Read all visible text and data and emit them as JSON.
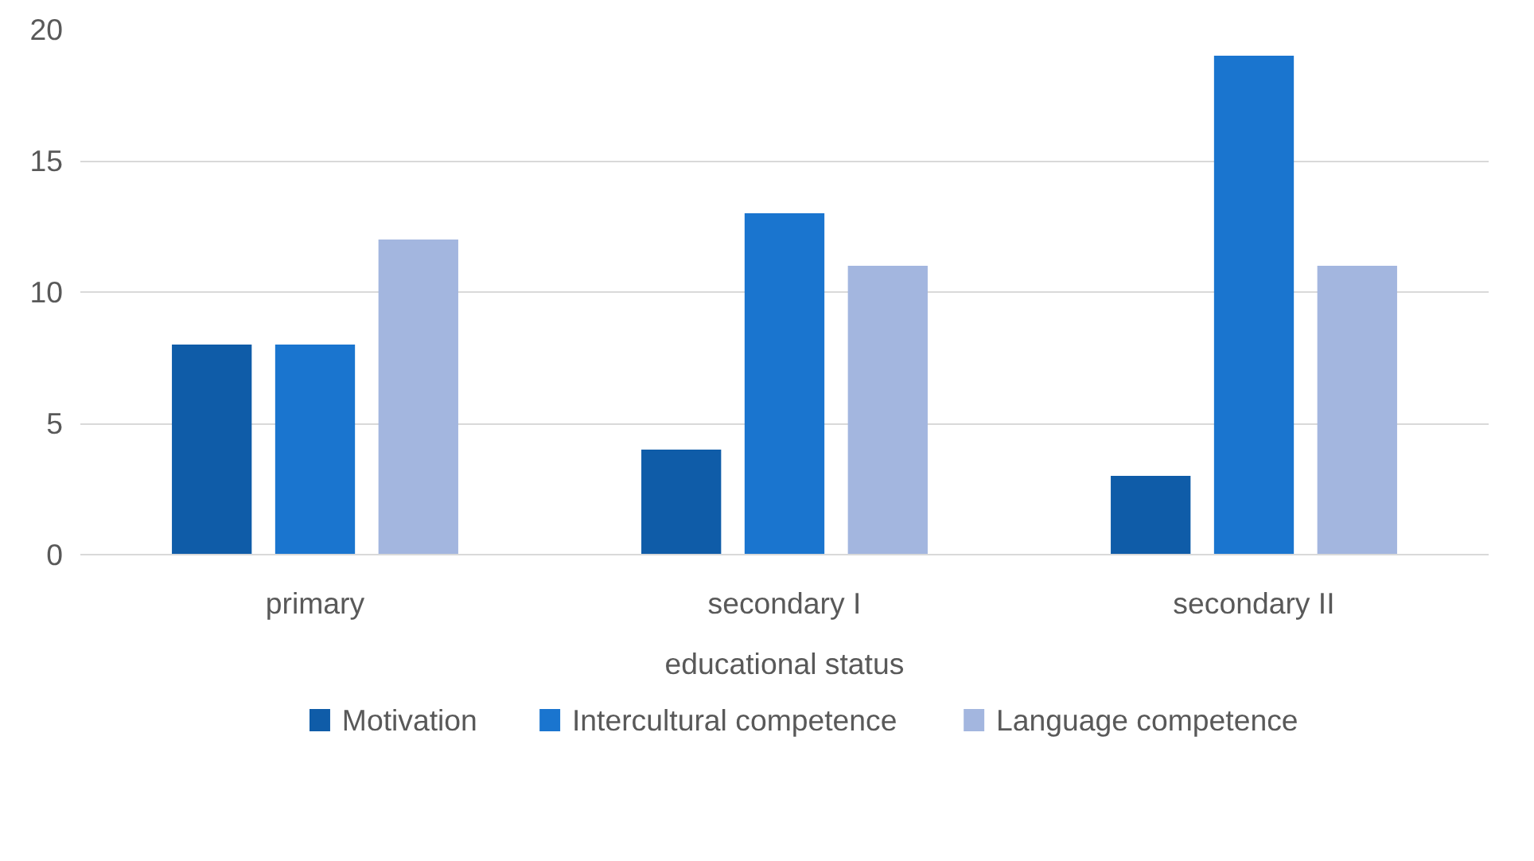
{
  "chart_data": {
    "type": "bar",
    "xlabel": "educational status",
    "categories": [
      "primary",
      "secondary I",
      "secondary II"
    ],
    "series": [
      {
        "name": "Motivation",
        "color": "#0f5ca8",
        "values": [
          8,
          4,
          3
        ]
      },
      {
        "name": "Intercultural competence",
        "color": "#1a75cf",
        "values": [
          8,
          13,
          19
        ]
      },
      {
        "name": "Language competence",
        "color": "#a3b6df",
        "values": [
          12,
          11,
          11
        ]
      }
    ],
    "ylim": [
      0,
      20
    ],
    "yticks": [
      0,
      5,
      10,
      15,
      20
    ],
    "grid": "y",
    "legend": "bottom"
  }
}
